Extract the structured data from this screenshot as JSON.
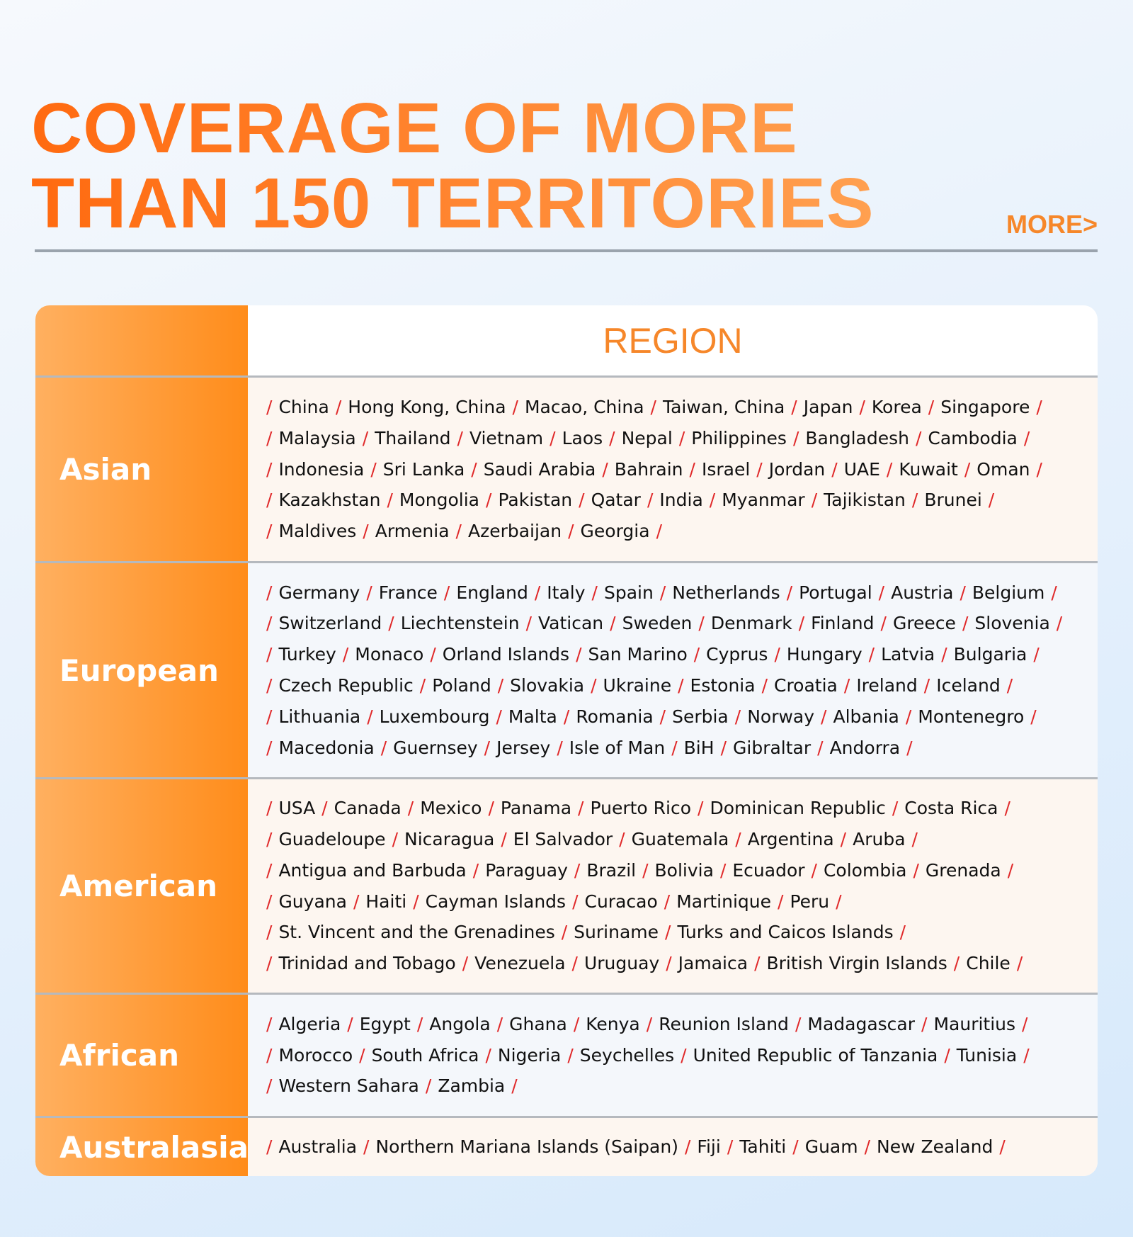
{
  "header": {
    "title_lines": [
      "COVERAGE OF MORE",
      "THAN 150 TERRITORIES"
    ],
    "more": "MORE>"
  },
  "table": {
    "column_header": "REGION",
    "separator": "/",
    "rows": [
      {
        "region": "Asian",
        "lines": [
          [
            "China",
            "Hong Kong, China",
            "Macao, China",
            "Taiwan, China",
            "Japan",
            "Korea",
            "Singapore"
          ],
          [
            "Malaysia",
            "Thailand",
            "Vietnam",
            "Laos",
            "Nepal",
            "Philippines",
            "Bangladesh",
            "Cambodia"
          ],
          [
            "Indonesia",
            "Sri Lanka",
            "Saudi Arabia",
            "Bahrain",
            "Israel",
            "Jordan",
            "UAE",
            "Kuwait",
            "Oman"
          ],
          [
            "Kazakhstan",
            "Mongolia",
            "Pakistan",
            "Qatar",
            "India",
            "Myanmar",
            "Tajikistan",
            "Brunei"
          ],
          [
            "Maldives",
            "Armenia",
            "Azerbaijan",
            "Georgia"
          ]
        ]
      },
      {
        "region": "European",
        "lines": [
          [
            "Germany",
            "France",
            "England",
            "Italy",
            "Spain",
            "Netherlands",
            "Portugal",
            "Austria",
            "Belgium"
          ],
          [
            "Switzerland",
            "Liechtenstein",
            "Vatican",
            "Sweden",
            "Denmark",
            "Finland",
            "Greece",
            "Slovenia"
          ],
          [
            "Turkey",
            "Monaco",
            "Orland Islands",
            "San Marino",
            "Cyprus",
            "Hungary",
            "Latvia",
            "Bulgaria"
          ],
          [
            "Czech Republic",
            "Poland",
            "Slovakia",
            "Ukraine",
            "Estonia",
            "Croatia",
            "Ireland",
            "Iceland"
          ],
          [
            "Lithuania",
            "Luxembourg",
            "Malta",
            "Romania",
            "Serbia",
            "Norway",
            "Albania",
            "Montenegro"
          ],
          [
            "Macedonia",
            "Guernsey",
            "Jersey",
            "Isle of Man",
            "BiH",
            "Gibraltar",
            "Andorra"
          ]
        ]
      },
      {
        "region": "American",
        "lines": [
          [
            "USA",
            "Canada",
            "Mexico",
            "Panama",
            "Puerto Rico",
            "Dominican Republic",
            "Costa Rica"
          ],
          [
            "Guadeloupe",
            "Nicaragua",
            "El Salvador",
            "Guatemala",
            "Argentina",
            "Aruba"
          ],
          [
            "Antigua and Barbuda",
            "Paraguay",
            "Brazil",
            "Bolivia",
            "Ecuador",
            "Colombia",
            "Grenada"
          ],
          [
            "Guyana",
            "Haiti",
            "Cayman Islands",
            "Curacao",
            "Martinique",
            "Peru"
          ],
          [
            "St. Vincent and the Grenadines",
            "Suriname",
            "Turks and Caicos Islands"
          ],
          [
            "Trinidad and Tobago",
            "Venezuela",
            "Uruguay",
            "Jamaica",
            "British Virgin Islands",
            "Chile"
          ]
        ]
      },
      {
        "region": "African",
        "lines": [
          [
            "Algeria",
            "Egypt",
            "Angola",
            "Ghana",
            "Kenya",
            "Reunion Island",
            "Madagascar",
            "Mauritius"
          ],
          [
            "Morocco",
            "South Africa",
            "Nigeria",
            "Seychelles",
            "United Republic of Tanzania",
            "Tunisia"
          ],
          [
            "Western Sahara",
            "Zambia"
          ]
        ]
      },
      {
        "region": "Australasia",
        "lines": [
          [
            "Australia",
            "Northern Mariana Islands (Saipan)",
            "Fiji",
            "Tahiti",
            "Guam",
            "New Zealand"
          ]
        ]
      }
    ]
  }
}
